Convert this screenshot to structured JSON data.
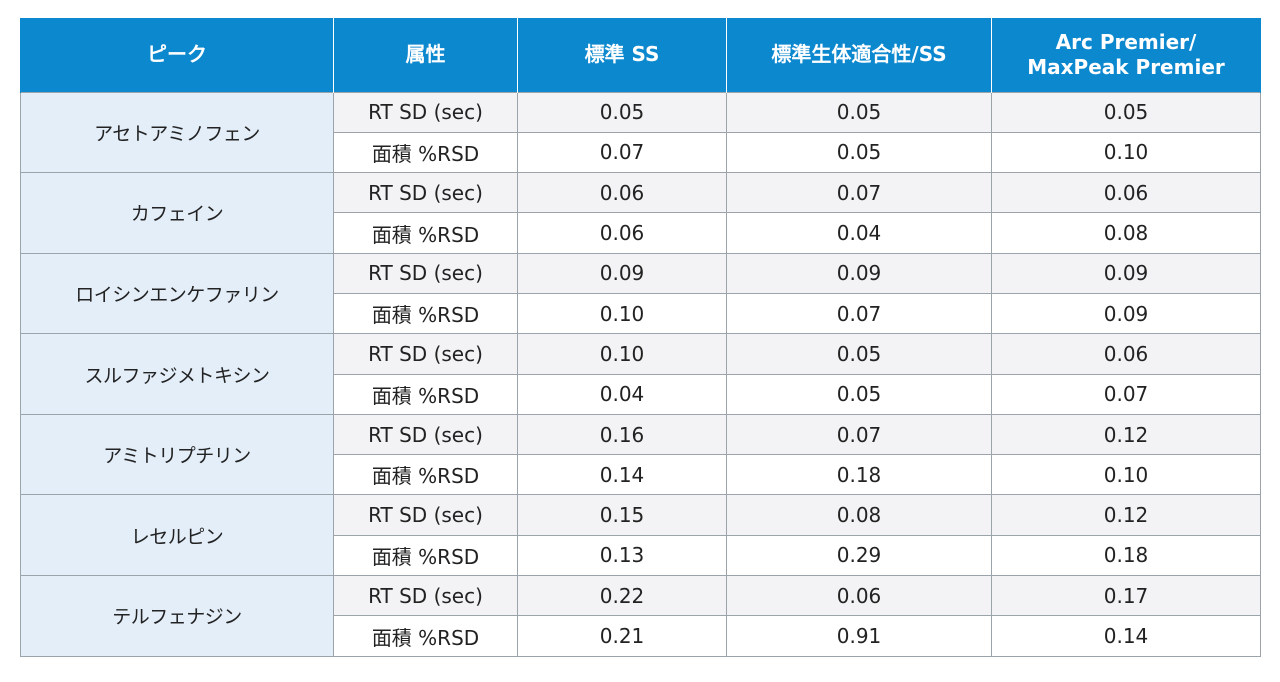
{
  "table": {
    "headers": [
      "ピーク",
      "属性",
      "標準 SS",
      "標準生体適合性/SS",
      "Arc Premier/ MaxPeak Premier"
    ],
    "header_last_lines": [
      "Arc Premier/",
      "MaxPeak Premier"
    ],
    "colors": {
      "header_bg": "#0c88cf",
      "header_text": "#ffffff",
      "peak_cell_bg": "#e3eef9",
      "stripe_bg": "#f3f3f5",
      "border": "#9ba3ab"
    },
    "groups": [
      {
        "peak": "アセトアミノフェン",
        "rows": [
          {
            "attr": "RT SD (sec)",
            "values": [
              "0.05",
              "0.05",
              "0.05"
            ]
          },
          {
            "attr": "面積 %RSD",
            "values": [
              "0.07",
              "0.05",
              "0.10"
            ]
          }
        ]
      },
      {
        "peak": "カフェイン",
        "rows": [
          {
            "attr": "RT SD (sec)",
            "values": [
              "0.06",
              "0.07",
              "0.06"
            ]
          },
          {
            "attr": "面積 %RSD",
            "values": [
              "0.06",
              "0.04",
              "0.08"
            ]
          }
        ]
      },
      {
        "peak": "ロイシンエンケファリン",
        "rows": [
          {
            "attr": "RT SD (sec)",
            "values": [
              "0.09",
              "0.09",
              "0.09"
            ]
          },
          {
            "attr": "面積 %RSD",
            "values": [
              "0.10",
              "0.07",
              "0.09"
            ]
          }
        ]
      },
      {
        "peak": "スルファジメトキシン",
        "rows": [
          {
            "attr": "RT SD (sec)",
            "values": [
              "0.10",
              "0.05",
              "0.06"
            ]
          },
          {
            "attr": "面積 %RSD",
            "values": [
              "0.04",
              "0.05",
              "0.07"
            ]
          }
        ]
      },
      {
        "peak": "アミトリプチリン",
        "rows": [
          {
            "attr": "RT SD (sec)",
            "values": [
              "0.16",
              "0.07",
              "0.12"
            ]
          },
          {
            "attr": "面積 %RSD",
            "values": [
              "0.14",
              "0.18",
              "0.10"
            ]
          }
        ]
      },
      {
        "peak": "レセルピン",
        "rows": [
          {
            "attr": "RT SD (sec)",
            "values": [
              "0.15",
              "0.08",
              "0.12"
            ]
          },
          {
            "attr": "面積 %RSD",
            "values": [
              "0.13",
              "0.29",
              "0.18"
            ]
          }
        ]
      },
      {
        "peak": "テルフェナジン",
        "rows": [
          {
            "attr": "RT SD (sec)",
            "values": [
              "0.22",
              "0.06",
              "0.17"
            ]
          },
          {
            "attr": "面積 %RSD",
            "values": [
              "0.21",
              "0.91",
              "0.14"
            ]
          }
        ]
      }
    ]
  }
}
